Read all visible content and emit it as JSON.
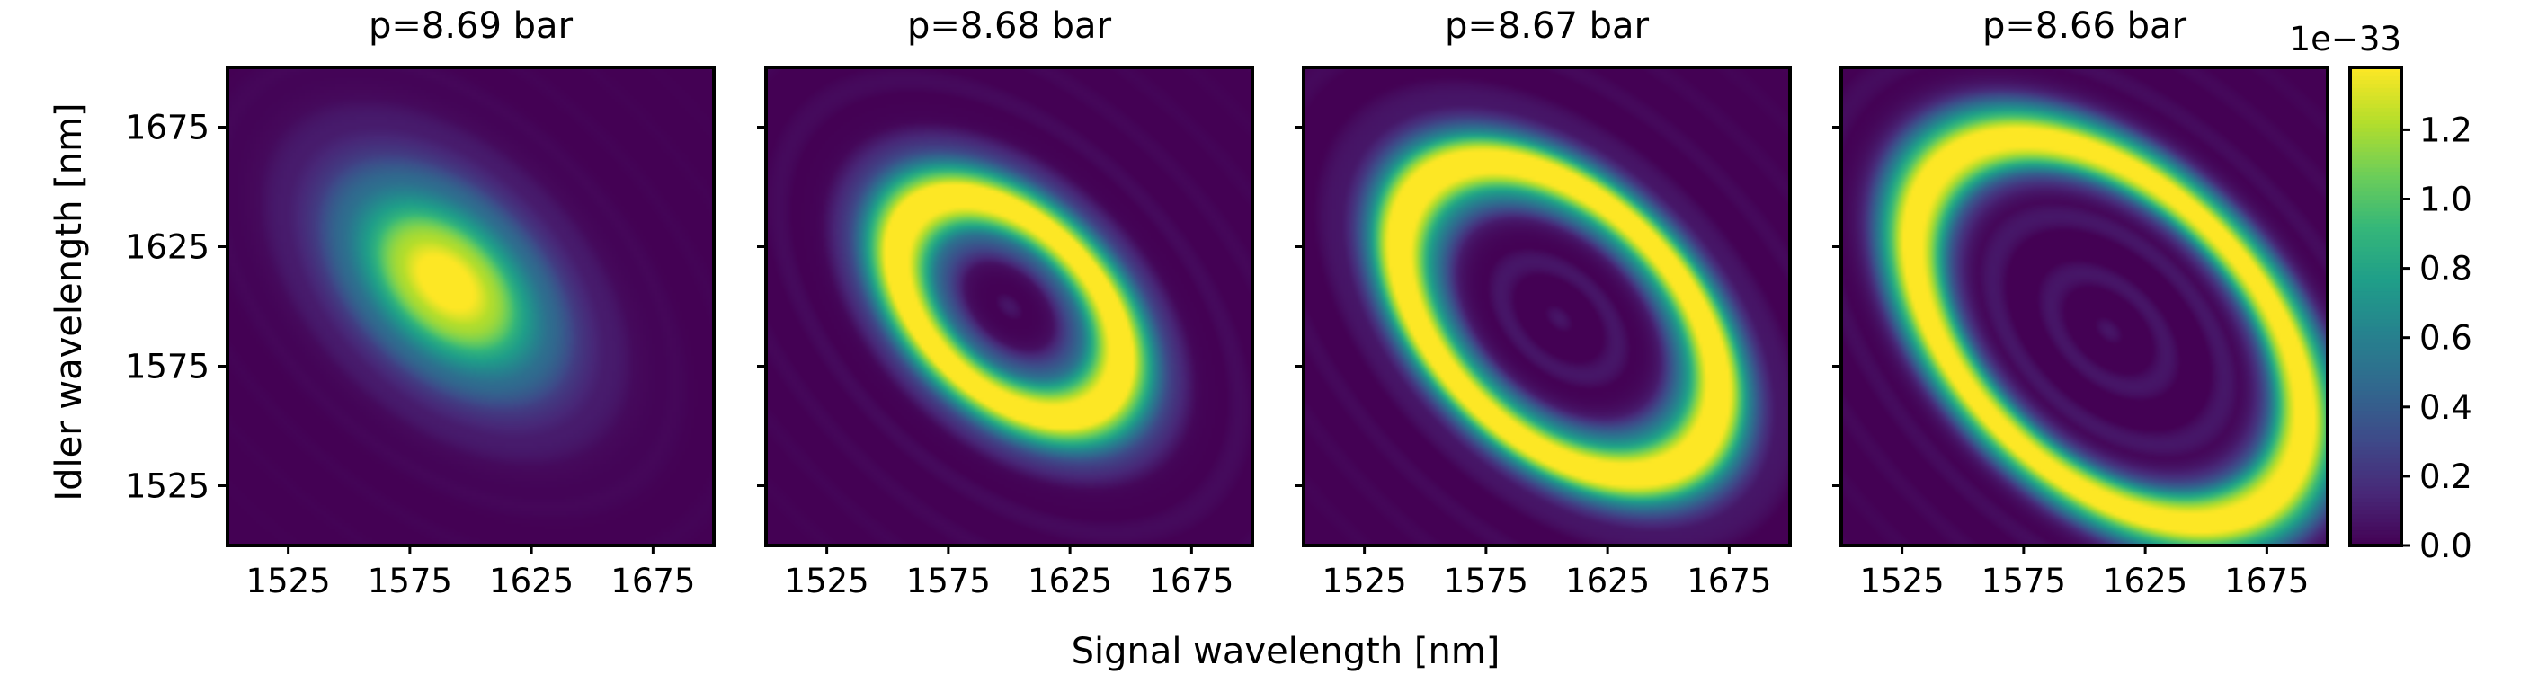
{
  "chart_data": {
    "type": "heatmap",
    "layout": "1x4 panels with shared colorbar",
    "xlabel": "Signal wavelength [nm]",
    "ylabel": "Idler wavelength [nm]",
    "xlim": [
      1500,
      1700
    ],
    "ylim": [
      1500,
      1700
    ],
    "xticks": [
      1525,
      1575,
      1625,
      1675
    ],
    "yticks": [
      1525,
      1575,
      1625,
      1675
    ],
    "tick_labels": [
      "1525",
      "1575",
      "1625",
      "1675"
    ],
    "colormap": "viridis",
    "panels": [
      {
        "title": "p=8.69 bar",
        "pressure_bar": 8.69,
        "ring_center_nm": [
          1590,
          1610
        ],
        "ring_radius": 0.0
      },
      {
        "title": "p=8.68 bar",
        "pressure_bar": 8.68,
        "ring_center_nm": [
          1600,
          1600
        ],
        "ring_radius": 0.55
      },
      {
        "title": "p=8.67 bar",
        "pressure_bar": 8.67,
        "ring_center_nm": [
          1605,
          1595
        ],
        "ring_radius": 0.78
      },
      {
        "title": "p=8.66 bar",
        "pressure_bar": 8.66,
        "ring_center_nm": [
          1610,
          1590
        ],
        "ring_radius": 0.97
      }
    ],
    "colorbar": {
      "offset_label": "1e−33",
      "range": [
        0.0,
        1.38
      ],
      "ticks": [
        0.0,
        0.2,
        0.4,
        0.6,
        0.8,
        1.0,
        1.2
      ],
      "tick_labels": [
        "0.0",
        "0.2",
        "0.4",
        "0.6",
        "0.8",
        "1.0",
        "1.2"
      ]
    }
  }
}
